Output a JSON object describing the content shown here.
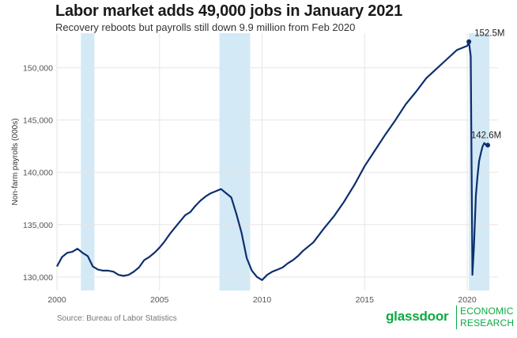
{
  "header": {
    "title": "Labor market adds 49,000 jobs in January 2021",
    "subtitle": "Recovery reboots but payrolls still down 9.9 million from Feb 2020"
  },
  "footer": {
    "source": "Source: Bureau of Labor Statistics",
    "logo": {
      "word": "glassdoor",
      "line1": "ECONOMIC",
      "line2": "RESEARCH"
    }
  },
  "colors": {
    "line": "#0d2f6e",
    "recession": "#d3e9f6",
    "grid": "#e6e6e6",
    "brand": "#0caa41"
  },
  "chart_data": {
    "type": "line",
    "title": "Labor market adds 49,000 jobs in January 2021",
    "ylabel": "Non-farm payrolls (000s)",
    "xlim": [
      2000,
      2021.5
    ],
    "ylim": [
      128700,
      153300
    ],
    "xticks": [
      2000,
      2005,
      2010,
      2015,
      2020
    ],
    "xtick_labels": [
      "2000",
      "2005",
      "2010",
      "2015",
      "2020"
    ],
    "yticks": [
      130000,
      135000,
      140000,
      145000,
      150000
    ],
    "ytick_labels": [
      "130,000",
      "135,000",
      "140,000",
      "145,000",
      "150,000"
    ],
    "grid": true,
    "recessions": [
      [
        2001.17,
        2001.83
      ],
      [
        2007.92,
        2009.42
      ],
      [
        2020.08,
        2021.08
      ]
    ],
    "annotations": [
      {
        "text": "152.5M",
        "x": 2020.08,
        "y": 152500
      },
      {
        "text": "142.6M",
        "x": 2021.0,
        "y": 142600
      }
    ],
    "series": [
      {
        "x": [
          2000.0,
          2000.25,
          2000.5,
          2000.75,
          2001.0,
          2001.25,
          2001.5,
          2001.75,
          2002.0,
          2002.25,
          2002.5,
          2002.75,
          2003.0,
          2003.25,
          2003.5,
          2003.75,
          2004.0,
          2004.25,
          2004.5,
          2004.75,
          2005.0,
          2005.25,
          2005.5,
          2005.75,
          2006.0,
          2006.25,
          2006.5,
          2006.75,
          2007.0,
          2007.25,
          2007.5,
          2007.75,
          2008.0,
          2008.25,
          2008.5,
          2008.75,
          2009.0,
          2009.25,
          2009.5,
          2009.75,
          2010.0,
          2010.25,
          2010.5,
          2010.75,
          2011.0,
          2011.25,
          2011.5,
          2011.75,
          2012.0,
          2012.5,
          2013.0,
          2013.5,
          2014.0,
          2014.5,
          2015.0,
          2015.5,
          2016.0,
          2016.5,
          2017.0,
          2017.5,
          2018.0,
          2018.5,
          2019.0,
          2019.5,
          2020.0,
          2020.08,
          2020.17,
          2020.25,
          2020.33,
          2020.42,
          2020.5,
          2020.58,
          2020.67,
          2020.75,
          2020.83,
          2020.92,
          2021.0
        ],
        "y": [
          131000,
          131900,
          132300,
          132400,
          132700,
          132300,
          132000,
          131000,
          130700,
          130600,
          130600,
          130500,
          130200,
          130100,
          130200,
          130500,
          130900,
          131600,
          131900,
          132300,
          132800,
          133400,
          134100,
          134700,
          135300,
          135900,
          136200,
          136800,
          137300,
          137700,
          138000,
          138200,
          138400,
          138000,
          137600,
          136000,
          134200,
          131800,
          130600,
          130000,
          129700,
          130200,
          130500,
          130700,
          130900,
          131300,
          131600,
          132000,
          132500,
          133300,
          134600,
          135800,
          137200,
          138800,
          140600,
          142100,
          143600,
          145000,
          146500,
          147700,
          149000,
          149900,
          150800,
          151700,
          152100,
          152500,
          151100,
          130200,
          133000,
          137800,
          139600,
          141100,
          141900,
          142500,
          142800,
          142600,
          142600
        ]
      }
    ]
  }
}
